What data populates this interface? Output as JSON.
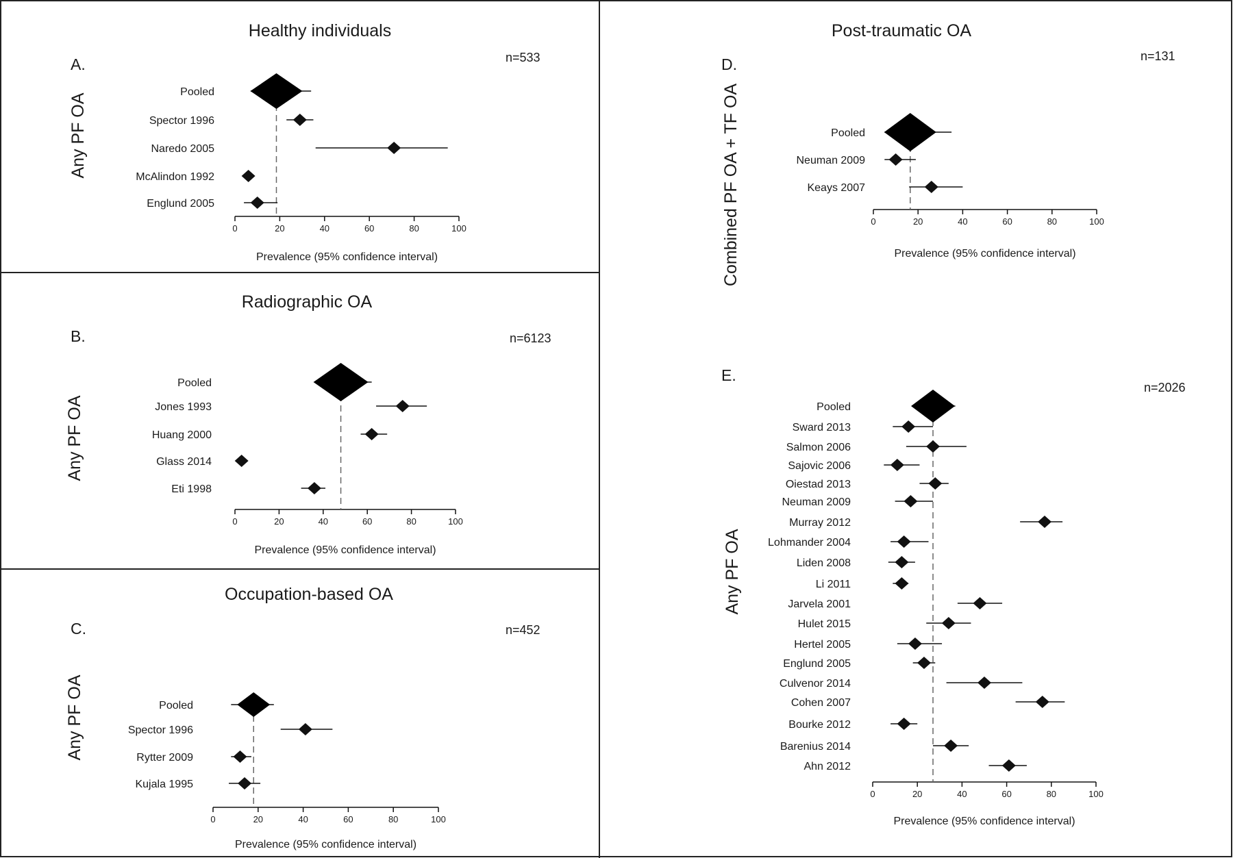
{
  "chart_data": [
    {
      "type": "forest",
      "panel": "A.",
      "title": "Healthy individuals",
      "n": "n=533",
      "ylabel": "Any PF OA",
      "xlabel": "Prevalence (95% confidence interval)",
      "xlim": [
        0,
        100
      ],
      "xticks": [
        0,
        20,
        40,
        60,
        80,
        100
      ],
      "pooled": {
        "label": "Pooled",
        "est": 18.5,
        "lo": 7,
        "hi": 34
      },
      "studies": [
        {
          "label": "Spector 1996",
          "est": 29,
          "lo": 23,
          "hi": 35
        },
        {
          "label": "Naredo 2005",
          "est": 71,
          "lo": 36,
          "hi": 95
        },
        {
          "label": "McAlindon 1992",
          "est": 6,
          "lo": 6,
          "hi": 6
        },
        {
          "label": "Englund 2005",
          "est": 10,
          "lo": 4,
          "hi": 19
        }
      ]
    },
    {
      "type": "forest",
      "panel": "B.",
      "title": "Radiographic OA",
      "n": "n=6123",
      "ylabel": "Any PF OA",
      "xlabel": "Prevalence (95% confidence interval)",
      "xlim": [
        0,
        100
      ],
      "xticks": [
        0,
        20,
        40,
        60,
        80,
        100
      ],
      "pooled": {
        "label": "Pooled",
        "est": 48,
        "lo": 36,
        "hi": 62
      },
      "studies": [
        {
          "label": "Jones 1993",
          "est": 76,
          "lo": 64,
          "hi": 87
        },
        {
          "label": "Huang 2000",
          "est": 62,
          "lo": 57,
          "hi": 69
        },
        {
          "label": "Glass 2014",
          "est": 3,
          "lo": 3,
          "hi": 3
        },
        {
          "label": "Eti 1998",
          "est": 36,
          "lo": 30,
          "hi": 41
        }
      ]
    },
    {
      "type": "forest",
      "panel": "C.",
      "title": "Occupation-based OA",
      "n": "n=452",
      "ylabel": "Any PF OA",
      "xlabel": "Prevalence (95% confidence interval)",
      "xlim": [
        0,
        100
      ],
      "xticks": [
        0,
        20,
        40,
        60,
        80,
        100
      ],
      "pooled": {
        "label": "Pooled",
        "est": 18,
        "lo": 8,
        "hi": 27
      },
      "studies": [
        {
          "label": "Spector 1996",
          "est": 41,
          "lo": 30,
          "hi": 53
        },
        {
          "label": "Rytter 2009",
          "est": 12,
          "lo": 8,
          "hi": 17
        },
        {
          "label": "Kujala 1995",
          "est": 14,
          "lo": 7,
          "hi": 21
        }
      ]
    },
    {
      "type": "forest",
      "panel": "D.",
      "title": "Post-traumatic OA",
      "n": "n=131",
      "ylabel": "Combined PF OA + TF OA",
      "xlabel": "Prevalence (95% confidence interval)",
      "xlim": [
        0,
        100
      ],
      "xticks": [
        0,
        20,
        40,
        60,
        80,
        100
      ],
      "pooled": {
        "label": "Pooled",
        "est": 16.5,
        "lo": 5,
        "hi": 35
      },
      "studies": [
        {
          "label": "Neuman 2009",
          "est": 10,
          "lo": 5,
          "hi": 19
        },
        {
          "label": "Keays 2007",
          "est": 26,
          "lo": 16,
          "hi": 40
        }
      ]
    },
    {
      "type": "forest",
      "panel": "E.",
      "title": "",
      "n": "n=2026",
      "ylabel": "Any PF OA",
      "xlabel": "Prevalence (95% confidence interval)",
      "xlim": [
        0,
        100
      ],
      "xticks": [
        0,
        20,
        40,
        60,
        80,
        100
      ],
      "pooled": {
        "label": "Pooled",
        "est": 27,
        "lo": 18,
        "hi": 37
      },
      "studies": [
        {
          "label": "Sward 2013",
          "est": 16,
          "lo": 9,
          "hi": 27
        },
        {
          "label": "Salmon 2006",
          "est": 27,
          "lo": 15,
          "hi": 42
        },
        {
          "label": "Sajovic 2006",
          "est": 11,
          "lo": 5,
          "hi": 21
        },
        {
          "label": "Oiestad 2013",
          "est": 28,
          "lo": 21,
          "hi": 34
        },
        {
          "label": "Neuman 2009",
          "est": 17,
          "lo": 10,
          "hi": 27
        },
        {
          "label": "Murray 2012",
          "est": 77,
          "lo": 66,
          "hi": 85
        },
        {
          "label": "Lohmander 2004",
          "est": 14,
          "lo": 8,
          "hi": 25
        },
        {
          "label": "Liden 2008",
          "est": 13,
          "lo": 7,
          "hi": 19
        },
        {
          "label": "Li 2011",
          "est": 13,
          "lo": 9,
          "hi": 16
        },
        {
          "label": "Jarvela 2001",
          "est": 48,
          "lo": 38,
          "hi": 58
        },
        {
          "label": "Hulet 2015",
          "est": 34,
          "lo": 24,
          "hi": 44
        },
        {
          "label": "Hertel 2005",
          "est": 19,
          "lo": 11,
          "hi": 31
        },
        {
          "label": "Englund 2005",
          "est": 23,
          "lo": 18,
          "hi": 28
        },
        {
          "label": "Culvenor 2014",
          "est": 50,
          "lo": 33,
          "hi": 67
        },
        {
          "label": "Cohen 2007",
          "est": 76,
          "lo": 64,
          "hi": 86
        },
        {
          "label": "Bourke 2012",
          "est": 14,
          "lo": 8,
          "hi": 20
        },
        {
          "label": "Barenius 2014",
          "est": 35,
          "lo": 27,
          "hi": 43
        },
        {
          "label": "Ahn 2012",
          "est": 61,
          "lo": 52,
          "hi": 69
        }
      ]
    }
  ]
}
